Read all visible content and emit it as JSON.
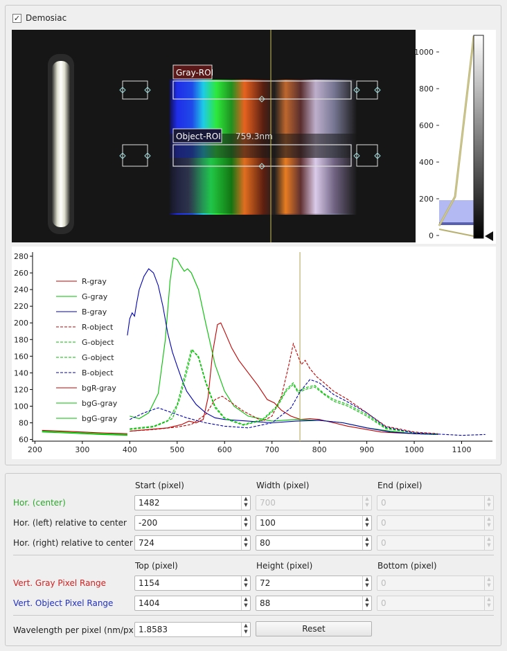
{
  "demosaic": {
    "label": "Demosiac",
    "checked": true
  },
  "camera": {
    "gray_roi_label": "Gray-ROI",
    "object_roi_label": "Object-ROI",
    "cursor_readout": "759.3nm"
  },
  "histogram": {
    "ticks": [
      "1000",
      "800",
      "600",
      "400",
      "200",
      "0"
    ]
  },
  "chart_data": {
    "type": "line",
    "title": "",
    "xlabel": "",
    "ylabel": "",
    "xlim": [
      195,
      1165
    ],
    "ylim": [
      58,
      285
    ],
    "x_ticks": [
      "200",
      "300",
      "400",
      "500",
      "600",
      "700",
      "800",
      "900",
      "1000",
      "1100"
    ],
    "y_ticks": [
      "60",
      "80",
      "100",
      "120",
      "140",
      "160",
      "180",
      "200",
      "220",
      "240",
      "260",
      "280"
    ],
    "cursor_x": 759,
    "legend": "top-left",
    "series": [
      {
        "name": "R-gray",
        "color": "#c00000",
        "dash": false,
        "x": [
          400,
          440,
          480,
          510,
          525,
          540,
          555,
          565,
          575,
          585,
          592,
          600,
          615,
          630,
          650,
          670,
          690,
          705,
          720,
          740,
          760,
          780,
          800,
          830,
          860,
          900,
          930,
          960,
          1000,
          1050
        ],
        "y": [
          70,
          72,
          74,
          78,
          82,
          80,
          84,
          110,
          165,
          198,
          200,
          190,
          170,
          155,
          140,
          125,
          108,
          104,
          95,
          88,
          84,
          85,
          84,
          80,
          76,
          72,
          69,
          68,
          67,
          66
        ]
      },
      {
        "name": "G-gray",
        "color": "#00c000",
        "dash": false,
        "x": [
          400,
          420,
          440,
          460,
          475,
          485,
          492,
          500,
          508,
          515,
          522,
          530,
          545,
          560,
          580,
          600,
          620,
          650,
          700,
          750,
          800,
          850,
          900,
          950,
          1000,
          1050
        ],
        "y": [
          88,
          85,
          92,
          115,
          180,
          250,
          278,
          276,
          268,
          262,
          265,
          260,
          240,
          200,
          150,
          118,
          100,
          88,
          82,
          84,
          83,
          80,
          74,
          70,
          67,
          66
        ]
      },
      {
        "name": "B-gray",
        "color": "#0000b0",
        "dash": false,
        "x": [
          395,
          400,
          405,
          410,
          415,
          420,
          430,
          440,
          450,
          460,
          470,
          480,
          490,
          500,
          510,
          520,
          540,
          560,
          580,
          600,
          650,
          700,
          750,
          800,
          850,
          900,
          950,
          1000,
          1050
        ],
        "y": [
          185,
          205,
          212,
          208,
          225,
          240,
          256,
          265,
          260,
          245,
          220,
          188,
          165,
          148,
          132,
          118,
          102,
          92,
          86,
          84,
          82,
          80,
          82,
          83,
          80,
          74,
          69,
          67,
          66
        ]
      },
      {
        "name": "R-object",
        "color": "#c00000",
        "dash": true,
        "x": [
          400,
          450,
          500,
          530,
          560,
          580,
          595,
          610,
          640,
          680,
          700,
          720,
          735,
          745,
          755,
          762,
          770,
          780,
          795,
          810,
          830,
          860,
          900,
          940,
          1000,
          1050
        ],
        "y": [
          70,
          72,
          75,
          78,
          90,
          108,
          112,
          106,
          94,
          82,
          88,
          112,
          148,
          175,
          160,
          150,
          155,
          145,
          135,
          128,
          118,
          108,
          92,
          76,
          69,
          67
        ]
      },
      {
        "name": "G-object",
        "color": "#00c000",
        "dash": true,
        "x": [
          400,
          450,
          480,
          500,
          515,
          530,
          545,
          560,
          580,
          600,
          640,
          680,
          710,
          730,
          745,
          755,
          770,
          790,
          810,
          830,
          860,
          900,
          940,
          1000,
          1050
        ],
        "y": [
          72,
          75,
          82,
          102,
          135,
          168,
          160,
          130,
          100,
          86,
          78,
          84,
          100,
          120,
          128,
          118,
          122,
          125,
          115,
          108,
          102,
          90,
          74,
          68,
          66
        ]
      },
      {
        "name": "G-object",
        "color": "#00c000",
        "dash": true,
        "x": [
          400,
          450,
          490,
          505,
          520,
          532,
          545,
          560,
          580,
          600,
          640,
          680,
          710,
          730,
          745,
          755,
          770,
          790,
          810,
          830,
          860,
          900,
          940,
          1000,
          1050
        ],
        "y": [
          73,
          76,
          85,
          108,
          140,
          168,
          158,
          128,
          98,
          85,
          77,
          83,
          98,
          118,
          126,
          116,
          120,
          123,
          114,
          106,
          100,
          88,
          73,
          68,
          66
        ]
      },
      {
        "name": "B-object",
        "color": "#0000b0",
        "dash": true,
        "x": [
          400,
          430,
          460,
          490,
          520,
          560,
          600,
          650,
          700,
          740,
          760,
          780,
          800,
          830,
          860,
          900,
          940,
          1000,
          1100,
          1150
        ],
        "y": [
          84,
          92,
          98,
          92,
          86,
          80,
          76,
          74,
          80,
          98,
          118,
          132,
          128,
          114,
          105,
          92,
          75,
          68,
          65,
          66
        ]
      },
      {
        "name": "bgR-gray",
        "color": "#c00000",
        "dash": false,
        "x": [
          215,
          260,
          300,
          340,
          395
        ],
        "y": [
          71,
          70,
          69,
          68,
          67
        ]
      },
      {
        "name": "bgG-gray",
        "color": "#00c000",
        "dash": false,
        "x": [
          215,
          260,
          300,
          340,
          395
        ],
        "y": [
          70,
          69,
          68,
          67,
          66
        ]
      },
      {
        "name": "bgG-gray",
        "color": "#00c000",
        "dash": false,
        "x": [
          215,
          260,
          300,
          340,
          395
        ],
        "y": [
          69,
          68,
          67,
          66,
          65
        ]
      }
    ]
  },
  "headers": {
    "start": "Start (pixel)",
    "width": "Width (pixel)",
    "end": "End (pixel)",
    "top": "Top (pixel)",
    "height": "Height (pixel)",
    "bottom": "Bottom (pixel)"
  },
  "rows": {
    "hor_center": {
      "label": "Hor. (center)",
      "start": "1482",
      "width": "700",
      "end": "0"
    },
    "hor_left": {
      "label": "Hor. (left) relative to center",
      "start": "-200",
      "width": "100",
      "end": "0"
    },
    "hor_right": {
      "label": "Hor. (right) relative to center",
      "start": "724",
      "width": "80",
      "end": "0"
    },
    "vert_gray": {
      "label": "Vert. Gray Pixel Range",
      "top": "1154",
      "height": "72",
      "bottom": "0"
    },
    "vert_object": {
      "label": "Vert. Object Pixel Range",
      "top": "1404",
      "height": "88",
      "bottom": "0"
    },
    "wavelength": {
      "label": "Wavelength per pixel (nm/px)",
      "value": "1.8583"
    }
  },
  "reset_label": "Reset",
  "colors": {
    "green_label": "#2aa52a",
    "red_label": "#d42020",
    "blue_label": "#2030c0",
    "cursor": "#c8c08a"
  }
}
